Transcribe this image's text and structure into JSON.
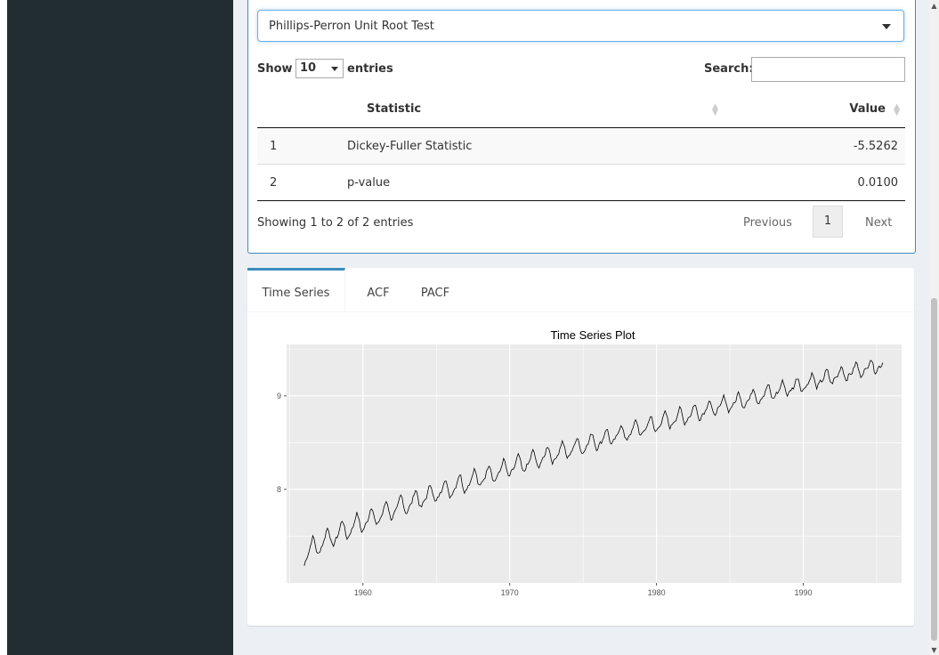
{
  "select": {
    "value": "Phillips-Perron Unit Root Test"
  },
  "datatable": {
    "show_label": "Show",
    "length_value": "10",
    "entries_label": "entries",
    "search_label": "Search:",
    "headers": {
      "index": "",
      "statistic": "Statistic",
      "value": "Value"
    },
    "rows": [
      {
        "index": "1",
        "statistic": "Dickey-Fuller Statistic",
        "value": "-5.5262"
      },
      {
        "index": "2",
        "statistic": "p-value",
        "value": "0.0100"
      }
    ],
    "info": "Showing 1 to 2 of 2 entries",
    "pagination": {
      "previous": "Previous",
      "current": "1",
      "next": "Next"
    }
  },
  "tabs": [
    {
      "label": "Time Series",
      "active": true
    },
    {
      "label": "ACF",
      "active": false
    },
    {
      "label": "PACF",
      "active": false
    }
  ],
  "chart_data": {
    "type": "line",
    "title": "Time Series Plot",
    "xlabel": "",
    "ylabel": "",
    "xlim": [
      1954.8,
      1996.7
    ],
    "ylim": [
      7.0,
      9.55
    ],
    "x_ticks": [
      1960,
      1970,
      1980,
      1990
    ],
    "x_tick_labels": [
      "1960",
      "1970",
      "1980",
      "1990"
    ],
    "y_ticks": [
      8,
      9
    ],
    "y_tick_labels": [
      "8",
      "9"
    ],
    "grid": true,
    "series": [
      {
        "start": 1956.0,
        "frequency": 12,
        "base_start": 7.28,
        "base_end": 9.34,
        "growth_shape": 0.75,
        "seasonal_amplitude_start": 0.1,
        "seasonal_amplitude_end": 0.06,
        "n_points": 474
      }
    ],
    "colors": {
      "panel": "#ebebeb",
      "grid": "#ffffff",
      "line": "#000000"
    }
  }
}
